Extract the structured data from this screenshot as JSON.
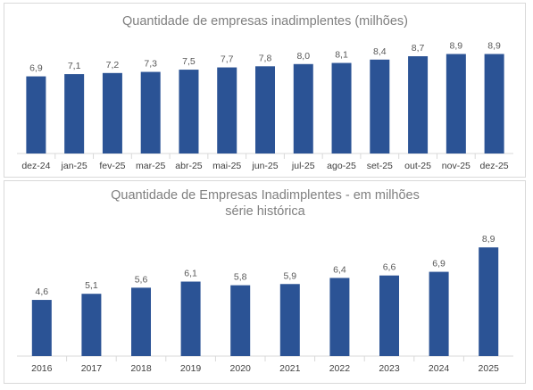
{
  "chart_data": [
    {
      "type": "bar",
      "title": "Quantidade de empresas inadimplentes (milhões)",
      "categories": [
        "dez-24",
        "jan-25",
        "fev-25",
        "mar-25",
        "abr-25",
        "mai-25",
        "jun-25",
        "jul-25",
        "ago-25",
        "set-25",
        "out-25",
        "nov-25",
        "dez-25"
      ],
      "values": [
        6.9,
        7.1,
        7.2,
        7.3,
        7.5,
        7.7,
        7.8,
        8.0,
        8.1,
        8.4,
        8.7,
        8.9,
        8.9
      ],
      "data_labels": [
        "6,9",
        "7,1",
        "7,2",
        "7,3",
        "7,5",
        "7,7",
        "7,8",
        "8,0",
        "8,1",
        "8,4",
        "8,7",
        "8,9",
        "8,9"
      ],
      "ylim": [
        0,
        9.5
      ],
      "bar_color": "#2b5395",
      "grid": false,
      "legend": "none"
    },
    {
      "type": "bar",
      "title": "Quantidade de Empresas Inadimplentes - em milhões",
      "subtitle": "série histórica",
      "categories": [
        "2016",
        "2017",
        "2018",
        "2019",
        "2020",
        "2021",
        "2022",
        "2023",
        "2024",
        "2025"
      ],
      "values": [
        4.6,
        5.1,
        5.6,
        6.1,
        5.8,
        5.9,
        6.4,
        6.6,
        6.9,
        8.9
      ],
      "data_labels": [
        "4,6",
        "5,1",
        "5,6",
        "6,1",
        "5,8",
        "5,9",
        "6,4",
        "6,6",
        "6,9",
        "8,9"
      ],
      "ylim": [
        0,
        9.5
      ],
      "bar_color": "#2b5395",
      "grid": false,
      "legend": "none"
    }
  ]
}
